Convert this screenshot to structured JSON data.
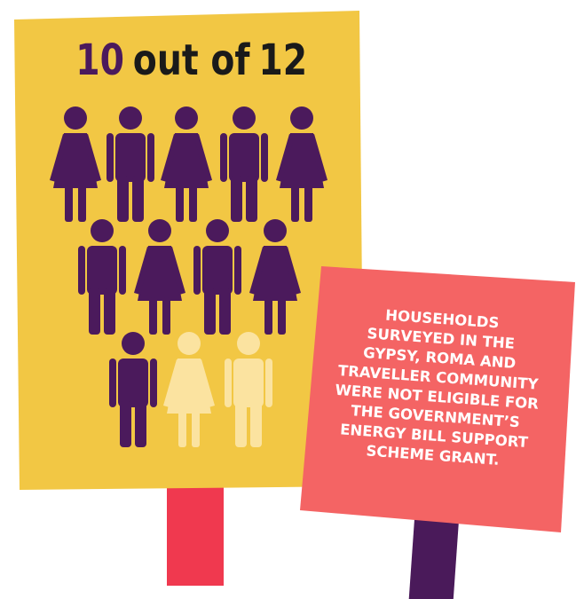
{
  "headline": {
    "count": 10,
    "connector": "out of",
    "total": 12
  },
  "message": {
    "lines": [
      "HOUSEHOLDS",
      "SURVEYED IN THE",
      "GYPSY, ROMA AND",
      "TRAVELLER COMMUNITY",
      "WERE NOT ELIGIBLE FOR",
      "THE GOVERNMENT’S",
      "ENERGY BILL SUPPORT",
      "SCHEME GRANT."
    ]
  }
}
